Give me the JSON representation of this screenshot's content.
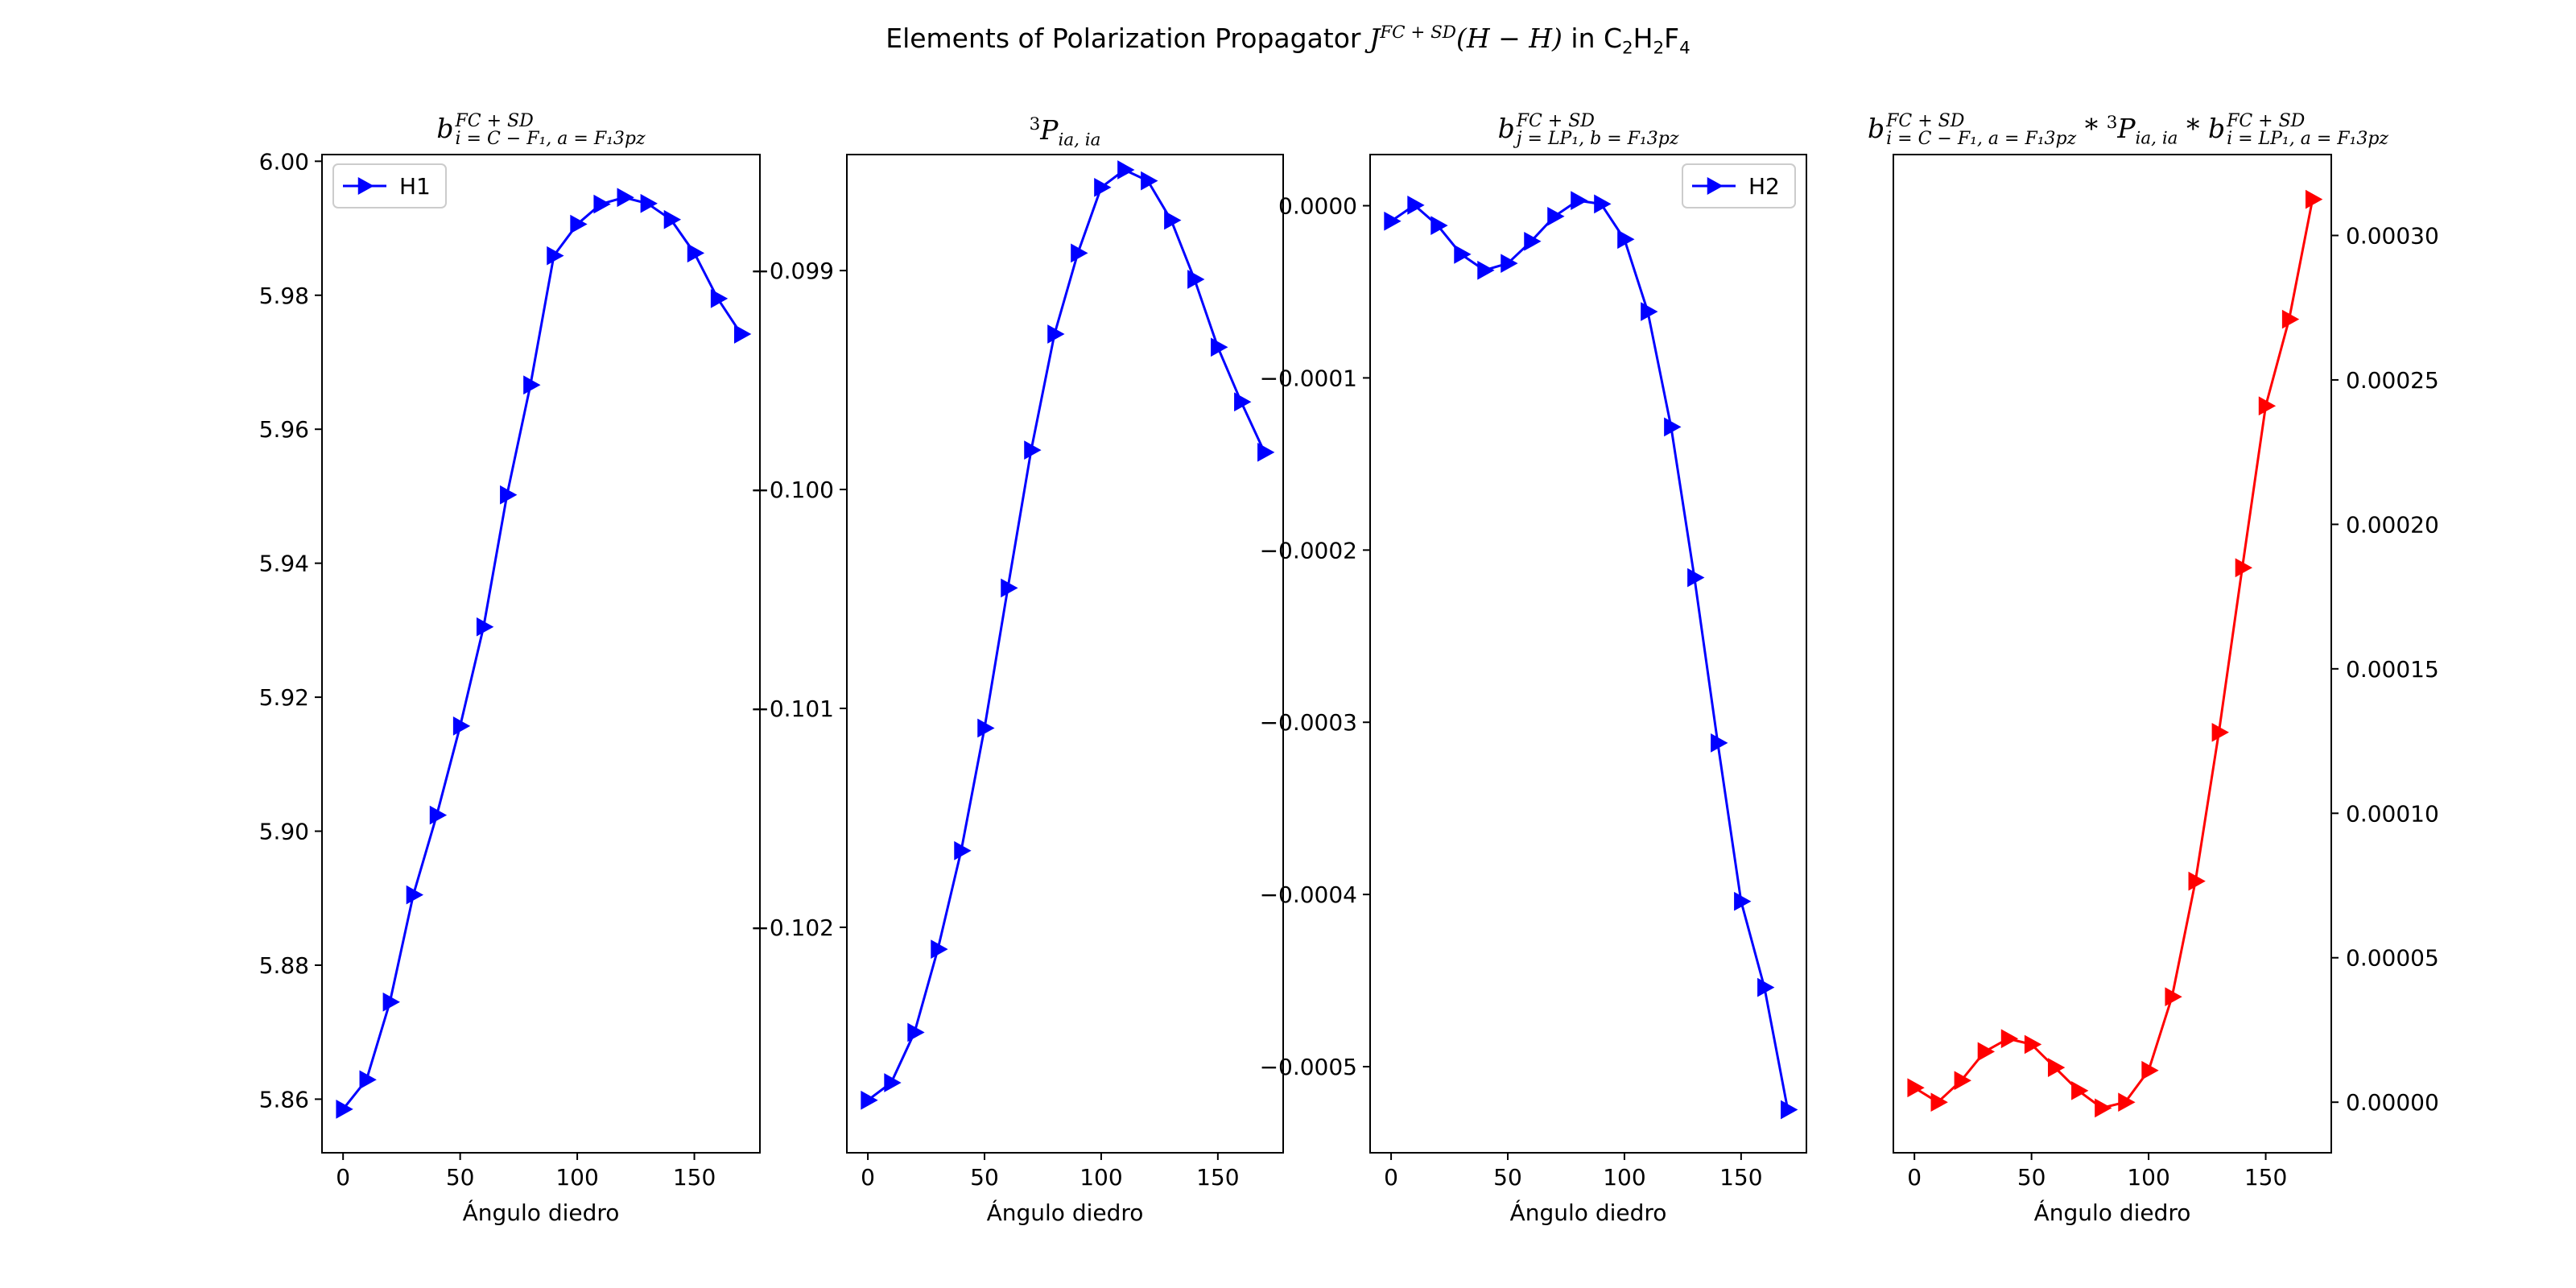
{
  "figure": {
    "suptitle_prefix": "Elements of Polarization Propagator ",
    "suptitle_j": "J",
    "suptitle_j_sup": "FC + SD",
    "suptitle_paren": "(H − H)",
    "suptitle_in": " in C",
    "suptitle_sub1": "2",
    "suptitle_h": "H",
    "suptitle_sub2": "2",
    "suptitle_f": "F",
    "suptitle_sub3": "4"
  },
  "panels_titles": [
    {
      "main": "b",
      "sup": "FC + SD",
      "sub": "i = C − F₁, a = F₁3pz"
    },
    {
      "main": "P",
      "pre_sup": "3",
      "sub": "ia, ia"
    },
    {
      "main": "b",
      "sup": "FC + SD",
      "sub": "j = LP₁, b = F₁3pz"
    },
    {
      "main": "b",
      "sup": "FC + SD",
      "sub": "i = C − F₁, a = F₁3pz",
      "mid": " * ",
      "mid_pre_sup": "3",
      "mid_main": "P",
      "mid_sub": "ia, ia",
      "mid2": " * ",
      "end_main": "b",
      "end_sup": "FC + SD",
      "end_sub": "i = LP₁, a = F₁3pz"
    }
  ],
  "chart_data": [
    {
      "type": "line",
      "xlabel": "Ángulo diedro",
      "ylabel": "",
      "xlim": [
        -9,
        178
      ],
      "ylim": [
        5.852,
        6.001
      ],
      "xticks": [
        0,
        50,
        100,
        150
      ],
      "yticks": [
        5.86,
        5.88,
        5.9,
        5.92,
        5.94,
        5.96,
        5.98,
        6.0
      ],
      "ytick_labels": [
        "5.86",
        "5.88",
        "5.90",
        "5.92",
        "5.94",
        "5.96",
        "5.98",
        "6.00"
      ],
      "yaxis_side": "left",
      "legend": "upper left",
      "series": [
        {
          "name": "H1",
          "color": "#0000ff",
          "marker": "triangle-right",
          "x": [
            0,
            10,
            20,
            30,
            40,
            50,
            60,
            70,
            80,
            90,
            100,
            110,
            120,
            130,
            140,
            150,
            160,
            170
          ],
          "y": [
            5.8585,
            5.8629,
            5.8745,
            5.8905,
            5.9024,
            5.9157,
            5.9305,
            5.9502,
            5.9666,
            5.9859,
            5.9906,
            5.9936,
            5.9946,
            5.9937,
            5.9913,
            5.9863,
            5.9795,
            5.9742
          ]
        }
      ]
    },
    {
      "type": "line",
      "xlabel": "Ángulo diedro",
      "ylabel": "",
      "xlim": [
        -9,
        178
      ],
      "ylim": [
        -0.10303,
        -0.09847
      ],
      "xticks": [
        0,
        50,
        100,
        150
      ],
      "yticks": [
        -0.099,
        -0.1,
        -0.101,
        -0.102
      ],
      "ytick_labels": [
        "−0.099",
        "−0.100",
        "−0.101",
        "−0.102"
      ],
      "yaxis_side": "left",
      "legend": "",
      "series": [
        {
          "name": "",
          "color": "#0000ff",
          "marker": "triangle-right",
          "x": [
            0,
            10,
            20,
            30,
            40,
            50,
            60,
            70,
            80,
            90,
            100,
            110,
            120,
            130,
            140,
            150,
            160,
            170
          ],
          "y": [
            -0.10279,
            -0.10271,
            -0.10248,
            -0.1021,
            -0.10165,
            -0.10109,
            -0.10045,
            -0.09982,
            -0.09929,
            -0.09892,
            -0.09862,
            -0.09854,
            -0.09859,
            -0.09877,
            -0.09904,
            -0.09935,
            -0.0996,
            -0.09983
          ]
        }
      ]
    },
    {
      "type": "line",
      "xlabel": "Ángulo diedro",
      "ylabel": "",
      "xlim": [
        -9,
        178
      ],
      "ylim": [
        -0.00055,
        2.97e-05
      ],
      "xticks": [
        0,
        50,
        100,
        150
      ],
      "yticks": [
        0.0,
        -0.0001,
        -0.0002,
        -0.0003,
        -0.0004,
        -0.0005
      ],
      "ytick_labels": [
        "0.0000",
        "−0.0001",
        "−0.0002",
        "−0.0003",
        "−0.0004",
        "−0.0005"
      ],
      "yaxis_side": "left",
      "legend": "upper right",
      "series": [
        {
          "name": "H2",
          "color": "#0000ff",
          "marker": "triangle-right",
          "x": [
            0,
            10,
            20,
            30,
            40,
            50,
            60,
            70,
            80,
            90,
            100,
            110,
            120,
            130,
            140,
            150,
            160,
            170
          ],
          "y": [
            -9e-06,
            3e-07,
            -1.15e-05,
            -2.82e-05,
            -3.75e-05,
            -3.35e-05,
            -2.07e-05,
            -6.2e-06,
            3e-06,
            1e-06,
            -1.95e-05,
            -6.15e-05,
            -0.0001285,
            -0.000216,
            -0.000312,
            -0.000404,
            -0.000454,
            -0.000525
          ]
        }
      ]
    },
    {
      "type": "line",
      "xlabel": "Ángulo diedro",
      "ylabel": "",
      "xlim": [
        -9,
        178
      ],
      "ylim": [
        -1.75e-05,
        0.000328
      ],
      "xticks": [
        0,
        50,
        100,
        150
      ],
      "yticks": [
        0.0,
        5e-05,
        0.0001,
        0.00015,
        0.0002,
        0.00025,
        0.0003
      ],
      "ytick_labels": [
        "0.00000",
        "0.00005",
        "0.00010",
        "0.00015",
        "0.00020",
        "0.00025",
        "0.00030"
      ],
      "yaxis_side": "right",
      "legend": "",
      "series": [
        {
          "name": "",
          "color": "#ff0000",
          "marker": "triangle-right",
          "x": [
            0,
            10,
            20,
            30,
            40,
            50,
            60,
            70,
            80,
            90,
            100,
            110,
            120,
            130,
            140,
            150,
            160,
            170
          ],
          "y": [
            5e-06,
            0.0,
            7.5e-06,
            1.75e-05,
            2.2e-05,
            2e-05,
            1.2e-05,
            4e-06,
            -2e-06,
            0.0,
            1.1e-05,
            3.65e-05,
            7.65e-05,
            0.000128,
            0.000185,
            0.000241,
            0.000271,
            0.0003125
          ]
        }
      ]
    }
  ]
}
